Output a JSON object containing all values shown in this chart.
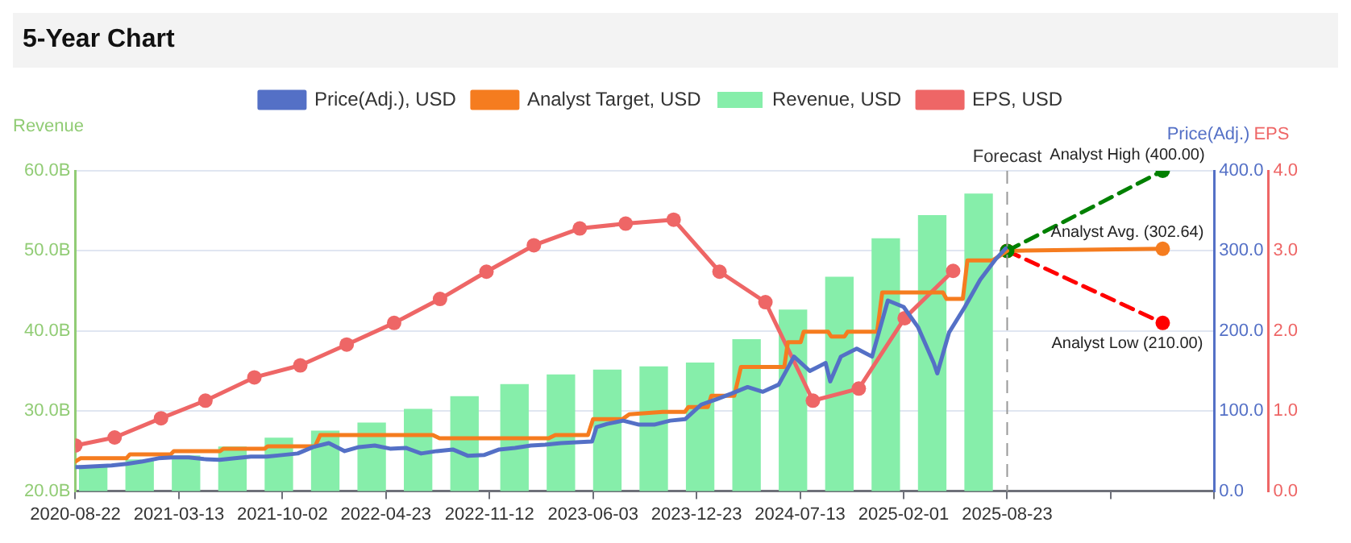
{
  "chart_data": {
    "type": "line",
    "title": "5-Year Chart",
    "ylabel": "Revenue",
    "y2label": "Price(Adj.)",
    "y3label": "EPS",
    "xlim": [
      "2020-08-22",
      "2026-10-03"
    ],
    "xticks": [
      "2020-08-22",
      "2021-03-13",
      "2021-10-02",
      "2022-04-23",
      "2022-11-12",
      "2023-06-03",
      "2023-12-23",
      "2024-07-13",
      "2025-02-01",
      "2025-08-23",
      {
        "value": "2026-03-14",
        "label": null
      },
      {
        "value": "2026-10-03",
        "label": null
      }
    ],
    "ylim": [
      20,
      60
    ],
    "yticks": [
      {
        "value": 20,
        "label": "20.0B"
      },
      {
        "value": 30,
        "label": "30.0B"
      },
      {
        "value": 40,
        "label": "40.0B"
      },
      {
        "value": 50,
        "label": "50.0B"
      },
      {
        "value": 60,
        "label": "60.0B"
      }
    ],
    "y2lim": [
      0,
      400
    ],
    "y2ticks": [
      {
        "value": 0,
        "label": "0.0"
      },
      {
        "value": 100,
        "label": "100.0"
      },
      {
        "value": 200,
        "label": "200.0"
      },
      {
        "value": 300,
        "label": "300.0"
      },
      {
        "value": 400,
        "label": "400.0"
      }
    ],
    "y3lim": [
      0,
      4
    ],
    "y3ticks": [
      {
        "value": 0,
        "label": "0.0"
      },
      {
        "value": 1,
        "label": "1.0"
      },
      {
        "value": 2,
        "label": "2.0"
      },
      {
        "value": 3,
        "label": "3.0"
      },
      {
        "value": 4,
        "label": "4.0"
      }
    ],
    "grid": "y",
    "legend": "top",
    "series": [
      {
        "name": "Price(Adj.), USD",
        "color": "#5470c6",
        "axis": "y2",
        "marker": "none",
        "x": [
          "2020-08-22",
          "2020-09",
          "2020-10",
          "2020-11",
          "2020-12",
          "2021-01",
          "2021-02",
          "2021-03",
          "2021-04",
          "2021-05",
          "2021-06",
          "2021-07",
          "2021-08",
          "2021-09",
          "2021-10",
          "2021-11",
          "2021-12",
          "2022-01",
          "2022-02",
          "2022-03",
          "2022-04",
          "2022-05",
          "2022-06",
          "2022-07",
          "2022-08",
          "2022-09",
          "2022-10",
          "2022-11",
          "2022-12",
          "2023-01",
          "2023-02",
          "2023-03",
          "2023-04",
          "2023-05",
          "2023-06",
          "2023-06-10",
          "2023-07",
          "2023-08",
          "2023-09",
          "2023-10",
          "2023-11",
          "2023-12",
          "2024-01",
          "2024-02",
          "2024-03",
          "2024-04",
          "2024-05",
          "2024-06",
          "2024-07",
          "2024-08",
          "2024-09",
          "2024-09-10",
          "2024-10",
          "2024-11",
          "2024-12",
          "2025-01",
          "2025-02",
          "2025-03",
          "2025-04",
          "2025-04-08",
          "2025-05",
          "2025-06",
          "2025-07",
          "2025-08",
          "2025-08-20"
        ],
        "values": [
          30,
          30,
          31,
          32,
          34,
          37,
          41,
          42,
          42,
          40,
          39,
          41,
          43,
          43,
          45,
          47,
          55,
          60,
          50,
          55,
          57,
          53,
          54,
          47,
          50,
          52,
          44,
          45,
          52,
          54,
          57,
          58,
          60,
          61,
          62,
          80,
          84,
          88,
          83,
          83,
          88,
          90,
          108,
          115,
          122,
          130,
          124,
          133,
          168,
          150,
          160,
          137,
          168,
          178,
          168,
          238,
          230,
          205,
          160,
          147,
          198,
          230,
          264,
          290,
          303
        ]
      },
      {
        "name": "Analyst Target, USD",
        "color": "#f57c1f",
        "axis": "y2",
        "marker": "none",
        "x": [
          "2020-08-22",
          "2020-09-01",
          "2020-11-30",
          "2020-12-07",
          "2021-02-25",
          "2021-03-03",
          "2021-06-02",
          "2021-06-08",
          "2021-08-28",
          "2021-09-03",
          "2021-12-05",
          "2021-12-15",
          "2022-07-24",
          "2022-08-06",
          "2023-03-08",
          "2023-03-21",
          "2023-05-24",
          "2023-06-03",
          "2023-07-31",
          "2023-08-13",
          "2023-10-18",
          "2023-11-30",
          "2023-12-07",
          "2024-01-14",
          "2024-01-21",
          "2024-03-06",
          "2024-03-19",
          "2024-06-12",
          "2024-06-19",
          "2024-07-14",
          "2024-07-20",
          "2024-09-06",
          "2024-09-12",
          "2024-10-08",
          "2024-10-14",
          "2024-12-11",
          "2024-12-21",
          "2025-04-19",
          "2025-04-26",
          "2025-05-28",
          "2025-06-06",
          "2025-07-25",
          "2025-08-16",
          "2025-08-23"
        ],
        "values": [
          37,
          41,
          41,
          46,
          46,
          50,
          50,
          53,
          53,
          56,
          56,
          70,
          70,
          66,
          66,
          70,
          70,
          90,
          90,
          96,
          99,
          99,
          105,
          105,
          119,
          119,
          155,
          155,
          186,
          186,
          199,
          199,
          193,
          193,
          199,
          199,
          248,
          248,
          240,
          240,
          288,
          288,
          297,
          300
        ]
      },
      {
        "name": "Revenue, USD",
        "type": "bar",
        "color": "#86eeaa",
        "x": [
          "2020-09-26",
          "2020-12-26",
          "2021-03-27",
          "2021-06-26",
          "2021-09-25",
          "2021-12-25",
          "2022-03-26",
          "2022-06-25",
          "2022-09-24",
          "2022-12-31",
          "2023-04-01",
          "2023-07-01",
          "2023-09-30",
          "2023-12-30",
          "2024-03-30",
          "2024-06-29",
          "2024-09-28",
          "2024-12-28",
          "2025-03-29",
          "2025-06-28"
        ],
        "values": [
          23.2,
          23.9,
          24.4,
          25.5,
          26.6,
          27.5,
          28.5,
          30.2,
          31.8,
          33.3,
          34.5,
          35.1,
          35.5,
          36.0,
          38.9,
          42.6,
          46.7,
          51.5,
          54.4,
          57.1
        ]
      },
      {
        "name": "EPS, USD",
        "color": "#ee6666",
        "axis": "y3",
        "marker": "circle",
        "x": [
          "2020-08-22",
          "2020-11-07",
          "2021-02-06",
          "2021-05-04",
          "2021-08-08",
          "2021-11-06",
          "2022-02-05",
          "2022-05-09",
          "2022-08-07",
          "2022-11-06",
          "2023-02-07",
          "2023-05-08",
          "2023-08-06",
          "2023-11-08",
          "2024-02-06",
          "2024-05-06",
          "2024-08-07",
          "2024-11-05",
          "2025-02-03",
          "2025-05-09"
        ],
        "values": [
          0.57,
          0.67,
          0.91,
          1.13,
          1.42,
          1.57,
          1.83,
          2.1,
          2.4,
          2.74,
          3.07,
          3.28,
          3.34,
          3.39,
          2.74,
          2.36,
          1.13,
          1.28,
          2.16,
          2.75
        ]
      },
      {
        "color": "#008000",
        "axis": "y2",
        "marker": "circle",
        "line_style": "dashed",
        "x": [
          "2025-08-23",
          "2026-06-24"
        ],
        "values": [
          300,
          400
        ]
      },
      {
        "color": "#f57c1f",
        "axis": "y2",
        "marker": "circle",
        "x": [
          "2025-08-23",
          "2026-06-24"
        ],
        "values": [
          300,
          302.64
        ]
      },
      {
        "color": "#ff0000",
        "axis": "y2",
        "marker": "circle",
        "line_style": "dashed",
        "x": [
          "2025-08-23",
          "2026-06-24"
        ],
        "values": [
          300,
          210
        ]
      }
    ],
    "ref_lines": [
      {
        "axis": "x",
        "value": "2025-08-23",
        "label": "Forecast",
        "color": "#999999",
        "line_style": "dashed"
      }
    ],
    "annotations": [
      "Analyst High (400.00)",
      "Analyst Avg. (302.64)",
      "Analyst Low (210.00)"
    ]
  }
}
